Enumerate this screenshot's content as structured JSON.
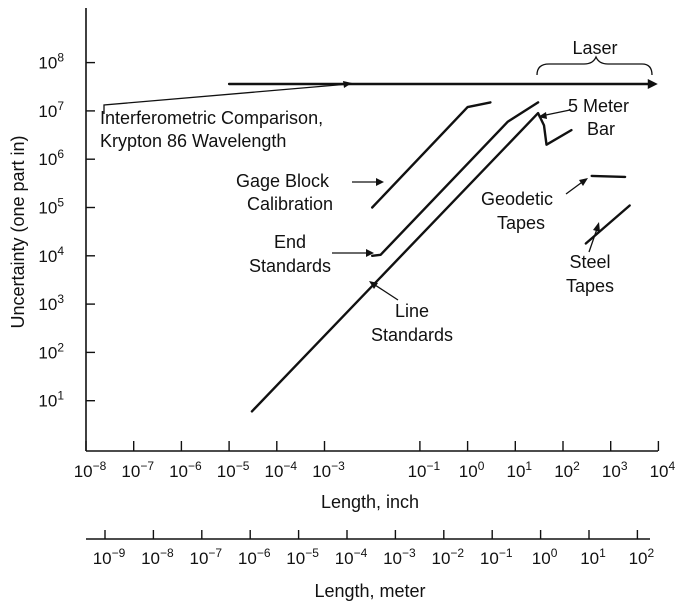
{
  "chart_data": {
    "type": "line",
    "xlabel": "Length, inch",
    "xlabel2": "Length, meter",
    "ylabel": "Uncertainty (one part in)",
    "log_x": true,
    "log_y": true,
    "xlim": [
      -8,
      4
    ],
    "ylim": [
      0,
      9
    ],
    "x_ticks": [
      {
        "e": -8,
        "label": "10",
        "exp": "−8"
      },
      {
        "e": -7,
        "label": "10",
        "exp": "−7"
      },
      {
        "e": -6,
        "label": "10",
        "exp": "−6"
      },
      {
        "e": -5,
        "label": "10",
        "exp": "−5"
      },
      {
        "e": -4,
        "label": "10",
        "exp": "−4"
      },
      {
        "e": -3,
        "label": "10",
        "exp": "−3"
      },
      {
        "e": -1,
        "label": "10",
        "exp": "−1"
      },
      {
        "e": 0,
        "label": "10",
        "exp": "0"
      },
      {
        "e": 1,
        "label": "10",
        "exp": "1"
      },
      {
        "e": 2,
        "label": "10",
        "exp": "2"
      },
      {
        "e": 3,
        "label": "10",
        "exp": "3"
      },
      {
        "e": 4,
        "label": "10",
        "exp": "4"
      }
    ],
    "x2_ticks": [
      {
        "e": -9,
        "label": "10",
        "exp": "−9"
      },
      {
        "e": -8,
        "label": "10",
        "exp": "−8"
      },
      {
        "e": -7,
        "label": "10",
        "exp": "−7"
      },
      {
        "e": -6,
        "label": "10",
        "exp": "−6"
      },
      {
        "e": -5,
        "label": "10",
        "exp": "−5"
      },
      {
        "e": -4,
        "label": "10",
        "exp": "−4"
      },
      {
        "e": -3,
        "label": "10",
        "exp": "−3"
      },
      {
        "e": -2,
        "label": "10",
        "exp": "−2"
      },
      {
        "e": -1,
        "label": "10",
        "exp": "−1"
      },
      {
        "e": 0,
        "label": "10",
        "exp": "0"
      },
      {
        "e": 1,
        "label": "10",
        "exp": "1"
      },
      {
        "e": 2,
        "label": "10",
        "exp": "2"
      }
    ],
    "y_ticks": [
      {
        "e": 1,
        "label": "10",
        "exp": "1"
      },
      {
        "e": 2,
        "label": "10",
        "exp": "2"
      },
      {
        "e": 3,
        "label": "10",
        "exp": "3"
      },
      {
        "e": 4,
        "label": "10",
        "exp": "4"
      },
      {
        "e": 5,
        "label": "10",
        "exp": "5"
      },
      {
        "e": 6,
        "label": "10",
        "exp": "6"
      },
      {
        "e": 7,
        "label": "10",
        "exp": "7"
      },
      {
        "e": 8,
        "label": "10",
        "exp": "8"
      }
    ],
    "series": [
      {
        "label": "Interferometric Comparison, Krypton 86 Wavelength",
        "points": [
          [
            1e-05,
            36000000
          ],
          [
            8000,
            36000000
          ]
        ]
      },
      {
        "label": "Gage Block Calibration",
        "points": [
          [
            0.01,
            100000
          ],
          [
            1,
            12000000
          ],
          [
            3,
            15000000
          ]
        ]
      },
      {
        "label": "End Standards",
        "points": [
          [
            0.01,
            10000
          ],
          [
            0.015,
            10500
          ],
          [
            7,
            6000000
          ],
          [
            30,
            15000000
          ]
        ]
      },
      {
        "label": "Line Standards",
        "points": [
          [
            3e-05,
            6
          ],
          [
            30,
            9000000
          ],
          [
            40,
            5000000
          ],
          [
            45,
            2000000
          ],
          [
            150,
            4000000
          ]
        ]
      },
      {
        "label": "Geodetic Tapes",
        "points": [
          [
            400,
            450000
          ],
          [
            2000,
            430000
          ]
        ]
      },
      {
        "label": "Steel Tapes",
        "points": [
          [
            300,
            18000
          ],
          [
            2500,
            110000
          ]
        ]
      }
    ],
    "annotations": {
      "laser": "Laser",
      "interferometric": [
        "Interferometric Comparison,",
        "Krypton 86 Wavelength"
      ],
      "meter5": [
        "5 Meter",
        "Bar"
      ],
      "gage": [
        "Gage Block",
        "Calibration"
      ],
      "geodetic": [
        "Geodetic",
        "Tapes"
      ],
      "end": [
        "End",
        "Standards"
      ],
      "steel": [
        "Steel",
        "Tapes"
      ],
      "line": [
        "Line",
        "Standards"
      ]
    }
  }
}
